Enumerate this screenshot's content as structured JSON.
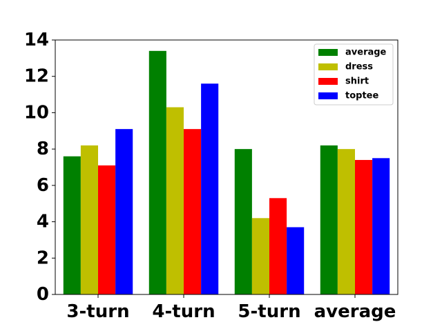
{
  "chart_data": {
    "type": "bar",
    "title": "",
    "xlabel": "",
    "ylabel": "",
    "categories": [
      "3-turn",
      "4-turn",
      "5-turn",
      "average"
    ],
    "series": [
      {
        "name": "average",
        "color": "#008000",
        "values": [
          7.6,
          13.4,
          8.0,
          8.2
        ]
      },
      {
        "name": "dress",
        "color": "#bfbf00",
        "values": [
          8.2,
          10.3,
          4.2,
          8.0
        ]
      },
      {
        "name": "shirt",
        "color": "#ff0000",
        "values": [
          7.1,
          9.1,
          5.3,
          7.4
        ]
      },
      {
        "name": "toptee",
        "color": "#0000ff",
        "values": [
          9.1,
          11.6,
          3.7,
          7.5
        ]
      }
    ],
    "ylim": [
      0,
      14
    ],
    "yticks": [
      "0",
      "2",
      "4",
      "6",
      "8",
      "10",
      "12",
      "14"
    ],
    "grid": false,
    "legend_position": "top-right"
  }
}
